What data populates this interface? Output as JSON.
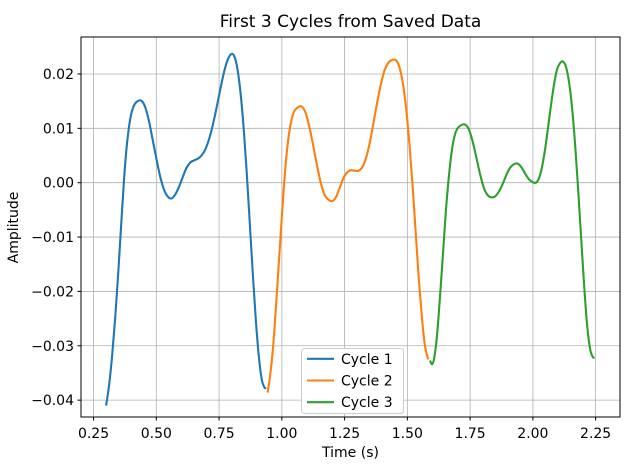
{
  "figure": {
    "background": "#ffffff",
    "text_color": "#000000",
    "grid_color": "#b0b0b0",
    "spine_color": "#000000",
    "legend_border_color": "#cccccc",
    "legend_background": "#ffffff"
  },
  "chart_data": {
    "type": "line",
    "title": "First 3 Cycles from Saved Data",
    "xlabel": "Time (s)",
    "ylabel": "Amplitude",
    "grid": true,
    "xlim": [
      0.2,
      2.347
    ],
    "ylim": [
      -0.0431,
      0.0268
    ],
    "x_ticks": {
      "values": [
        0.25,
        0.5,
        0.75,
        1.0,
        1.25,
        1.5,
        1.75,
        2.0,
        2.25
      ],
      "labels": [
        "0.25",
        "0.50",
        "0.75",
        "1.00",
        "1.25",
        "1.50",
        "1.75",
        "2.00",
        "2.25"
      ]
    },
    "y_ticks": {
      "values": [
        0.02,
        0.01,
        0.0,
        -0.01,
        -0.02,
        -0.03,
        -0.04
      ],
      "labels": [
        "0.02",
        "0.01",
        "0.00",
        "−0.01",
        "−0.02",
        "−0.03",
        "−0.04"
      ]
    },
    "legend": {
      "position": "lower center",
      "labels": [
        "Cycle 1",
        "Cycle 2",
        "Cycle 3"
      ]
    },
    "series": [
      {
        "name": "Cycle 1",
        "color": "#1f77b4",
        "points": [
          [
            0.3,
            -0.041
          ],
          [
            0.312,
            -0.0372
          ],
          [
            0.324,
            -0.0318
          ],
          [
            0.336,
            -0.025
          ],
          [
            0.348,
            -0.0168
          ],
          [
            0.36,
            -0.0078
          ],
          [
            0.372,
            0.001
          ],
          [
            0.384,
            0.0075
          ],
          [
            0.398,
            0.0122
          ],
          [
            0.412,
            0.0143
          ],
          [
            0.426,
            0.015
          ],
          [
            0.44,
            0.0151
          ],
          [
            0.455,
            0.014
          ],
          [
            0.47,
            0.0115
          ],
          [
            0.485,
            0.008
          ],
          [
            0.5,
            0.0045
          ],
          [
            0.515,
            0.0012
          ],
          [
            0.53,
            -0.0012
          ],
          [
            0.545,
            -0.0025
          ],
          [
            0.56,
            -0.0029
          ],
          [
            0.575,
            -0.0022
          ],
          [
            0.59,
            -0.0008
          ],
          [
            0.605,
            0.001
          ],
          [
            0.62,
            0.0027
          ],
          [
            0.635,
            0.0037
          ],
          [
            0.65,
            0.0041
          ],
          [
            0.665,
            0.0044
          ],
          [
            0.68,
            0.005
          ],
          [
            0.695,
            0.0061
          ],
          [
            0.71,
            0.008
          ],
          [
            0.725,
            0.0106
          ],
          [
            0.74,
            0.0138
          ],
          [
            0.755,
            0.0172
          ],
          [
            0.77,
            0.0204
          ],
          [
            0.785,
            0.0227
          ],
          [
            0.8,
            0.0237
          ],
          [
            0.812,
            0.0231
          ],
          [
            0.824,
            0.0207
          ],
          [
            0.836,
            0.0163
          ],
          [
            0.848,
            0.01
          ],
          [
            0.86,
            0.002
          ],
          [
            0.872,
            -0.0072
          ],
          [
            0.884,
            -0.0165
          ],
          [
            0.896,
            -0.025
          ],
          [
            0.908,
            -0.0318
          ],
          [
            0.92,
            -0.0362
          ],
          [
            0.93,
            -0.0376
          ],
          [
            0.937,
            -0.0379
          ]
        ]
      },
      {
        "name": "Cycle 2",
        "color": "#ff7f0e",
        "points": [
          [
            0.943,
            -0.0386
          ],
          [
            0.952,
            -0.036
          ],
          [
            0.962,
            -0.0318
          ],
          [
            0.972,
            -0.026
          ],
          [
            0.982,
            -0.019
          ],
          [
            0.994,
            -0.0105
          ],
          [
            1.006,
            -0.0022
          ],
          [
            1.018,
            0.0048
          ],
          [
            1.032,
            0.01
          ],
          [
            1.046,
            0.0128
          ],
          [
            1.062,
            0.0138
          ],
          [
            1.08,
            0.014
          ],
          [
            1.095,
            0.0128
          ],
          [
            1.11,
            0.0102
          ],
          [
            1.125,
            0.0068
          ],
          [
            1.14,
            0.0032
          ],
          [
            1.155,
            0.0
          ],
          [
            1.17,
            -0.0022
          ],
          [
            1.185,
            -0.0031
          ],
          [
            1.2,
            -0.0034
          ],
          [
            1.215,
            -0.0027
          ],
          [
            1.23,
            -0.001
          ],
          [
            1.245,
            0.0008
          ],
          [
            1.26,
            0.0019
          ],
          [
            1.275,
            0.0023
          ],
          [
            1.29,
            0.0022
          ],
          [
            1.305,
            0.0022
          ],
          [
            1.32,
            0.0028
          ],
          [
            1.335,
            0.0045
          ],
          [
            1.35,
            0.0073
          ],
          [
            1.365,
            0.011
          ],
          [
            1.38,
            0.0148
          ],
          [
            1.395,
            0.0182
          ],
          [
            1.41,
            0.0208
          ],
          [
            1.425,
            0.0221
          ],
          [
            1.44,
            0.0226
          ],
          [
            1.455,
            0.0225
          ],
          [
            1.468,
            0.0213
          ],
          [
            1.481,
            0.0186
          ],
          [
            1.494,
            0.0141
          ],
          [
            1.507,
            0.0078
          ],
          [
            1.52,
            0.0
          ],
          [
            1.533,
            -0.009
          ],
          [
            1.546,
            -0.018
          ],
          [
            1.559,
            -0.0253
          ],
          [
            1.57,
            -0.03
          ],
          [
            1.58,
            -0.032
          ],
          [
            1.585,
            -0.0325
          ]
        ]
      },
      {
        "name": "Cycle 3",
        "color": "#2ca02c",
        "points": [
          [
            1.59,
            -0.0327
          ],
          [
            1.598,
            -0.0334
          ],
          [
            1.606,
            -0.0325
          ],
          [
            1.615,
            -0.0295
          ],
          [
            1.624,
            -0.0248
          ],
          [
            1.633,
            -0.019
          ],
          [
            1.643,
            -0.0123
          ],
          [
            1.653,
            -0.0055
          ],
          [
            1.664,
            0.0005
          ],
          [
            1.676,
            0.0055
          ],
          [
            1.688,
            0.0086
          ],
          [
            1.7,
            0.01
          ],
          [
            1.715,
            0.0106
          ],
          [
            1.73,
            0.0107
          ],
          [
            1.745,
            0.0098
          ],
          [
            1.76,
            0.0076
          ],
          [
            1.775,
            0.0046
          ],
          [
            1.79,
            0.0015
          ],
          [
            1.805,
            -0.001
          ],
          [
            1.82,
            -0.0023
          ],
          [
            1.835,
            -0.0027
          ],
          [
            1.85,
            -0.0025
          ],
          [
            1.865,
            -0.0016
          ],
          [
            1.88,
            -0.0002
          ],
          [
            1.895,
            0.0015
          ],
          [
            1.91,
            0.0028
          ],
          [
            1.925,
            0.0034
          ],
          [
            1.94,
            0.0035
          ],
          [
            1.955,
            0.0028
          ],
          [
            1.97,
            0.0016
          ],
          [
            1.985,
            0.0006
          ],
          [
            2.0,
            0.0001
          ],
          [
            2.012,
            0.0
          ],
          [
            2.024,
            0.0008
          ],
          [
            2.036,
            0.0028
          ],
          [
            2.048,
            0.006
          ],
          [
            2.06,
            0.01
          ],
          [
            2.072,
            0.0142
          ],
          [
            2.084,
            0.018
          ],
          [
            2.096,
            0.0208
          ],
          [
            2.108,
            0.022
          ],
          [
            2.12,
            0.0223
          ],
          [
            2.132,
            0.0213
          ],
          [
            2.144,
            0.0185
          ],
          [
            2.156,
            0.0138
          ],
          [
            2.168,
            0.0072
          ],
          [
            2.18,
            -0.001
          ],
          [
            2.192,
            -0.01
          ],
          [
            2.204,
            -0.0188
          ],
          [
            2.216,
            -0.0262
          ],
          [
            2.228,
            -0.0306
          ],
          [
            2.238,
            -0.032
          ],
          [
            2.245,
            -0.0323
          ]
        ]
      }
    ]
  }
}
